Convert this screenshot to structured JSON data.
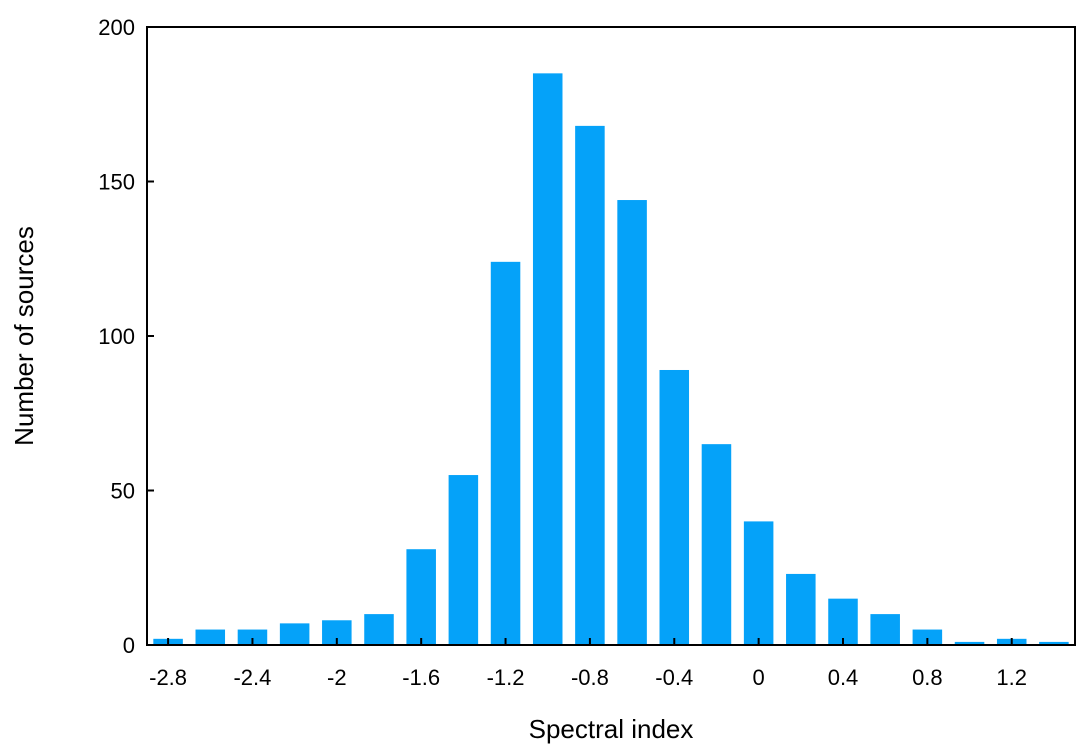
{
  "chart_data": {
    "type": "bar",
    "xlabel": "Spectral index",
    "ylabel": "Number of sources",
    "ylim": [
      0,
      200
    ],
    "xlim": [
      -2.9,
      1.5
    ],
    "bin_width": 0.2,
    "grid": false,
    "legend": "none",
    "bar_color": "#05a2f9",
    "x": [
      -2.8,
      -2.6,
      -2.4,
      -2.2,
      -2.0,
      -1.8,
      -1.6,
      -1.4,
      -1.2,
      -1.0,
      -0.8,
      -0.6,
      -0.4,
      -0.2,
      0.0,
      0.2,
      0.4,
      0.6,
      0.8,
      1.0,
      1.2,
      1.4
    ],
    "values": [
      2,
      5,
      5,
      7,
      8,
      10,
      31,
      55,
      124,
      185,
      168,
      144,
      89,
      65,
      40,
      23,
      15,
      10,
      5,
      1,
      2,
      1
    ],
    "x_ticks": [
      {
        "value": -2.8,
        "label": "-2.8"
      },
      {
        "value": -2.4,
        "label": "-2.4"
      },
      {
        "value": -2.0,
        "label": "-2"
      },
      {
        "value": -1.6,
        "label": "-1.6"
      },
      {
        "value": -1.2,
        "label": "-1.2"
      },
      {
        "value": -0.8,
        "label": "-0.8"
      },
      {
        "value": -0.4,
        "label": "-0.4"
      },
      {
        "value": 0.0,
        "label": "0"
      },
      {
        "value": 0.4,
        "label": "0.4"
      },
      {
        "value": 0.8,
        "label": "0.8"
      },
      {
        "value": 1.2,
        "label": "1.2"
      }
    ],
    "y_ticks": [
      {
        "value": 0,
        "label": "0"
      },
      {
        "value": 50,
        "label": "50"
      },
      {
        "value": 100,
        "label": "100"
      },
      {
        "value": 150,
        "label": "150"
      },
      {
        "value": 200,
        "label": "200"
      }
    ]
  }
}
